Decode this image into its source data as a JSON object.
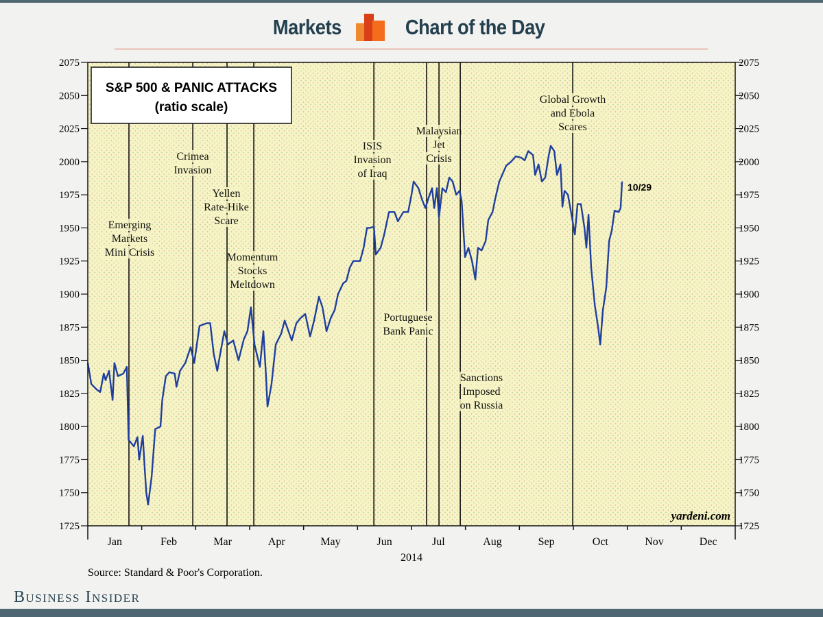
{
  "header": {
    "left": "Markets",
    "right": "Chart of the Day",
    "brand_colors": [
      "#f0892e",
      "#d9401a",
      "#f36d1c"
    ]
  },
  "footer": {
    "brand": "Business Insider"
  },
  "chart_data": {
    "type": "line",
    "title": "S&P 500 & PANIC ATTACKS",
    "subtitle": "(ratio scale)",
    "xlabel": "2014",
    "ylabel": "",
    "source": "Source: Standard & Poor's Corporation.",
    "watermark": "yardeni.com",
    "x_unit": "day of year 2014",
    "xlim": [
      0,
      365
    ],
    "ylim": [
      1725,
      2075
    ],
    "y_ticks": [
      1725,
      1750,
      1775,
      1800,
      1825,
      1850,
      1875,
      1900,
      1925,
      1950,
      1975,
      2000,
      2025,
      2050,
      2075
    ],
    "month_labels": [
      "Jan",
      "Feb",
      "Mar",
      "Apr",
      "May",
      "Jun",
      "Jul",
      "Aug",
      "Sep",
      "Oct",
      "Nov",
      "Dec"
    ],
    "line_color": "#1f3f9e",
    "plot_bg": "#f6f3c4",
    "end_label": "10/29",
    "series": [
      {
        "name": "S&P 500",
        "points": [
          [
            0,
            1848
          ],
          [
            2,
            1832
          ],
          [
            5,
            1828
          ],
          [
            7,
            1826
          ],
          [
            9,
            1840
          ],
          [
            10,
            1835
          ],
          [
            12,
            1842
          ],
          [
            14,
            1820
          ],
          [
            15,
            1848
          ],
          [
            17,
            1838
          ],
          [
            20,
            1840
          ],
          [
            22,
            1845
          ],
          [
            23,
            1790
          ],
          [
            26,
            1785
          ],
          [
            28,
            1792
          ],
          [
            29,
            1775
          ],
          [
            31,
            1793
          ],
          [
            32,
            1770
          ],
          [
            33,
            1750
          ],
          [
            34,
            1741
          ],
          [
            36,
            1762
          ],
          [
            38,
            1798
          ],
          [
            41,
            1800
          ],
          [
            42,
            1820
          ],
          [
            44,
            1838
          ],
          [
            46,
            1841
          ],
          [
            49,
            1840
          ],
          [
            50,
            1830
          ],
          [
            52,
            1842
          ],
          [
            55,
            1848
          ],
          [
            58,
            1860
          ],
          [
            60,
            1848
          ],
          [
            63,
            1876
          ],
          [
            67,
            1878
          ],
          [
            69,
            1878
          ],
          [
            71,
            1855
          ],
          [
            73,
            1842
          ],
          [
            74,
            1850
          ],
          [
            77,
            1872
          ],
          [
            79,
            1862
          ],
          [
            82,
            1865
          ],
          [
            85,
            1850
          ],
          [
            88,
            1866
          ],
          [
            90,
            1872
          ],
          [
            92,
            1890
          ],
          [
            94,
            1862
          ],
          [
            97,
            1845
          ],
          [
            99,
            1872
          ],
          [
            100.5,
            1838
          ],
          [
            101.3,
            1815
          ],
          [
            103.6,
            1832
          ],
          [
            106,
            1862
          ],
          [
            109,
            1870
          ],
          [
            111,
            1880
          ],
          [
            115,
            1865
          ],
          [
            117.6,
            1878
          ],
          [
            120,
            1882
          ],
          [
            122.6,
            1885
          ],
          [
            125.3,
            1868
          ],
          [
            127.6,
            1880
          ],
          [
            130.3,
            1898
          ],
          [
            132.3,
            1890
          ],
          [
            134.6,
            1872
          ],
          [
            137,
            1882
          ],
          [
            139.2,
            1888
          ],
          [
            141.1,
            1900
          ],
          [
            143.9,
            1908
          ],
          [
            145.8,
            1910
          ],
          [
            147.7,
            1920
          ],
          [
            149.7,
            1925
          ],
          [
            153.5,
            1925
          ],
          [
            155.5,
            1935
          ],
          [
            157.4,
            1950
          ],
          [
            159.3,
            1950
          ],
          [
            161.3,
            1951
          ],
          [
            162.4,
            1930
          ],
          [
            165.1,
            1935
          ],
          [
            167.1,
            1945
          ],
          [
            169.8,
            1962
          ],
          [
            172.9,
            1962
          ],
          [
            174.8,
            1955
          ],
          [
            177.9,
            1962
          ],
          [
            180.6,
            1962
          ],
          [
            182.5,
            1975
          ],
          [
            183.7,
            1985
          ],
          [
            186.4,
            1980
          ],
          [
            188.3,
            1972
          ],
          [
            190.3,
            1965
          ],
          [
            192.2,
            1973
          ],
          [
            194.1,
            1980
          ],
          [
            195.3,
            1965
          ],
          [
            196.8,
            1980
          ],
          [
            198,
            1958
          ],
          [
            199.9,
            1980
          ],
          [
            201.9,
            1977
          ],
          [
            203.8,
            1988
          ],
          [
            205.7,
            1985
          ],
          [
            207.7,
            1975
          ],
          [
            209.6,
            1978
          ],
          [
            210.8,
            1970
          ],
          [
            212.7,
            1928
          ],
          [
            214.6,
            1935
          ],
          [
            216.6,
            1925
          ],
          [
            218.5,
            1911
          ],
          [
            220,
            1935
          ],
          [
            222,
            1933
          ],
          [
            224.3,
            1940
          ],
          [
            225.8,
            1956
          ],
          [
            228.2,
            1962
          ],
          [
            229.7,
            1972
          ],
          [
            232,
            1985
          ],
          [
            233.6,
            1990
          ],
          [
            235.9,
            1997
          ],
          [
            238.6,
            2000
          ],
          [
            241.3,
            2004
          ],
          [
            244.4,
            2003
          ],
          [
            246.3,
            2001
          ],
          [
            248.3,
            2008
          ],
          [
            251,
            2005
          ],
          [
            252.2,
            1990
          ],
          [
            254.1,
            1998
          ],
          [
            256,
            1985
          ],
          [
            257.9,
            1988
          ],
          [
            259.9,
            2005
          ],
          [
            261,
            2012
          ],
          [
            263,
            2008
          ],
          [
            264.5,
            1990
          ],
          [
            266.5,
            1998
          ],
          [
            267.6,
            1966
          ],
          [
            268.8,
            1978
          ],
          [
            270.7,
            1975
          ],
          [
            272.7,
            1960
          ],
          [
            274.6,
            1945
          ],
          [
            276.1,
            1968
          ],
          [
            278,
            1968
          ],
          [
            280,
            1950
          ],
          [
            281.1,
            1935
          ],
          [
            282.3,
            1960
          ],
          [
            283.8,
            1920
          ],
          [
            285.8,
            1892
          ],
          [
            287.7,
            1875
          ],
          [
            288.9,
            1862
          ],
          [
            290.4,
            1888
          ],
          [
            292.3,
            1905
          ],
          [
            293.9,
            1940
          ],
          [
            295.4,
            1948
          ],
          [
            297,
            1963
          ],
          [
            299.3,
            1962
          ],
          [
            300.4,
            1965
          ],
          [
            301.2,
            1985
          ]
        ]
      }
    ],
    "events": [
      {
        "day": 23.2,
        "lines": [
          "Emerging",
          "Markets",
          "Mini Crisis"
        ]
      },
      {
        "day": 59.2,
        "lines": [
          "Crimea",
          "Invasion"
        ]
      },
      {
        "day": 78.5,
        "lines": [
          "Yellen",
          "Rate-Hike",
          "Scare"
        ]
      },
      {
        "day": 93.6,
        "lines": [
          "Momentum",
          "Stocks",
          "Meltdown"
        ]
      },
      {
        "day": 161.3,
        "lines": [
          "ISIS",
          "Invasion",
          "of Iraq"
        ]
      },
      {
        "day": 191,
        "lines": [
          "Portuguese",
          "Bank Panic"
        ]
      },
      {
        "day": 198,
        "lines": [
          "Malaysian",
          "Jet",
          "Crisis"
        ]
      },
      {
        "day": 210,
        "lines": [
          "Sanctions",
          "Imposed",
          "on Russia"
        ]
      },
      {
        "day": 273.4,
        "lines": [
          "Global Growth",
          "and Ebola",
          "Scares"
        ]
      }
    ]
  }
}
